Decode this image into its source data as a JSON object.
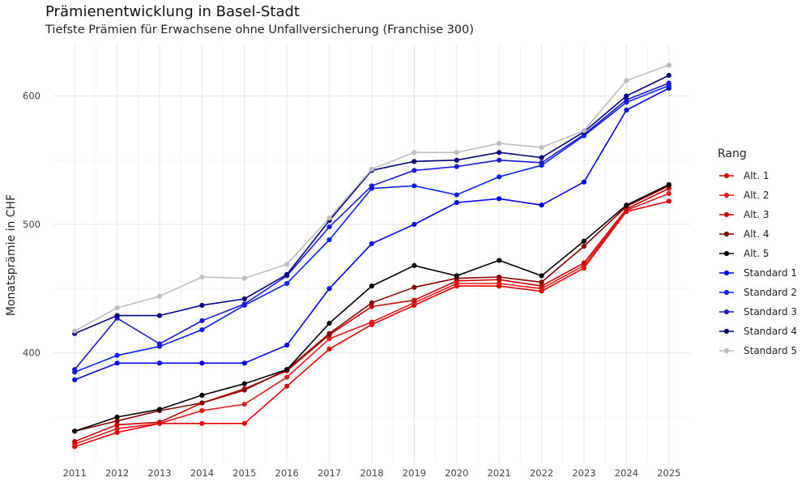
{
  "chart_data": {
    "type": "line",
    "title": "Prämienentwicklung in Basel-Stadt",
    "subtitle": "Tiefste Prämien für Erwachsene ohne Unfallversicherung (Franchise 300)",
    "xlabel": "",
    "ylabel": "Monatsprämie in CHF",
    "x": [
      2011,
      2012,
      2013,
      2014,
      2015,
      2016,
      2017,
      2018,
      2019,
      2020,
      2021,
      2022,
      2023,
      2024,
      2025
    ],
    "xlim": [
      2010.5,
      2025.5
    ],
    "ylim": [
      314,
      640
    ],
    "yticks": [
      400,
      500,
      600
    ],
    "grid": true,
    "legend_title": "Rang",
    "legend_position": "right",
    "series": [
      {
        "name": "Alt. 1",
        "color": "#e80000",
        "values": [
          327,
          338,
          345,
          345,
          345,
          374,
          403,
          422,
          437,
          452,
          452,
          448,
          466,
          510,
          518
        ]
      },
      {
        "name": "Alt. 2",
        "color": "#e31a1c",
        "values": [
          329,
          341,
          345,
          355,
          360,
          381,
          411,
          424,
          439,
          454,
          454,
          450,
          468,
          511,
          524
        ]
      },
      {
        "name": "Alt. 3",
        "color": "#cc0000",
        "values": [
          331,
          344,
          346,
          361,
          372,
          386,
          414,
          436,
          441,
          456,
          457,
          452,
          470,
          512,
          528
        ]
      },
      {
        "name": "Alt. 4",
        "color": "#8b0000",
        "values": [
          339,
          347,
          355,
          361,
          371,
          387,
          415,
          439,
          451,
          458,
          459,
          455,
          483,
          514,
          530
        ]
      },
      {
        "name": "Alt. 5",
        "color": "#000000",
        "values": [
          339,
          350,
          356,
          367,
          376,
          387,
          423,
          452,
          468,
          460,
          472,
          460,
          487,
          515,
          531
        ]
      },
      {
        "name": "Standard 1",
        "color": "#0000ee",
        "values": [
          379,
          392,
          392,
          392,
          392,
          406,
          450,
          485,
          500,
          517,
          520,
          515,
          533,
          589,
          606
        ]
      },
      {
        "name": "Standard 2",
        "color": "#0a1ff0",
        "values": [
          385,
          398,
          405,
          418,
          437,
          454,
          488,
          528,
          530,
          523,
          537,
          546,
          569,
          595,
          608
        ]
      },
      {
        "name": "Standard 3",
        "color": "#1a1ad6",
        "values": [
          387,
          427,
          407,
          425,
          438,
          460,
          498,
          530,
          542,
          545,
          550,
          548,
          570,
          597,
          610
        ]
      },
      {
        "name": "Standard 4",
        "color": "#000080",
        "values": [
          415,
          429,
          429,
          437,
          442,
          461,
          503,
          542,
          549,
          550,
          556,
          552,
          572,
          600,
          616
        ]
      },
      {
        "name": "Standard 5",
        "color": "#bdbdbd",
        "values": [
          417,
          435,
          444,
          459,
          458,
          469,
          505,
          543,
          556,
          556,
          563,
          560,
          573,
          612,
          624
        ]
      }
    ]
  }
}
